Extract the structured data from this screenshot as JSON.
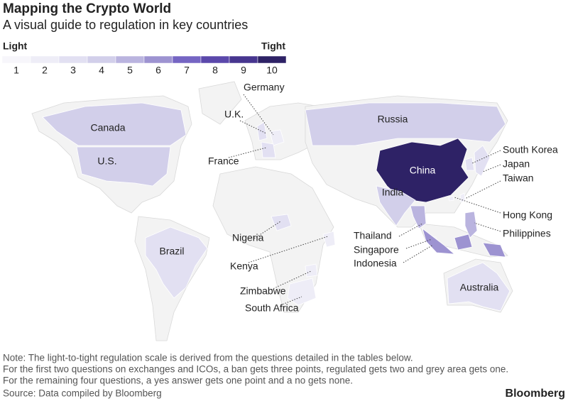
{
  "header": {
    "title": "Mapping the Crypto World",
    "subtitle": "A visual guide to regulation in key countries"
  },
  "legend": {
    "low_label": "Light",
    "high_label": "Tight",
    "scale": [
      1,
      2,
      3,
      4,
      5,
      6,
      7,
      8,
      9,
      10
    ],
    "colors": [
      "#f7f6fb",
      "#eeedf7",
      "#e2e0f2",
      "#d2cfea",
      "#bab4df",
      "#9d93d1",
      "#7565c3",
      "#5b48ab",
      "#47368f",
      "#2e2266"
    ]
  },
  "countries": [
    {
      "name": "Canada",
      "level": 4
    },
    {
      "name": "U.S.",
      "level": 4
    },
    {
      "name": "Russia",
      "level": 4
    },
    {
      "name": "China",
      "level": 10
    },
    {
      "name": "India",
      "level": 4
    },
    {
      "name": "Brazil",
      "level": 3
    },
    {
      "name": "Australia",
      "level": 3
    },
    {
      "name": "Germany",
      "level": 2
    },
    {
      "name": "U.K.",
      "level": 3
    },
    {
      "name": "France",
      "level": 3
    },
    {
      "name": "Nigeria",
      "level": 3
    },
    {
      "name": "Kenya",
      "level": 2
    },
    {
      "name": "Zimbabwe",
      "level": 2
    },
    {
      "name": "South Africa",
      "level": 2
    },
    {
      "name": "South Korea",
      "level": 3
    },
    {
      "name": "Japan",
      "level": 3
    },
    {
      "name": "Taiwan",
      "level": 2
    },
    {
      "name": "Hong Kong",
      "level": 2
    },
    {
      "name": "Philippines",
      "level": 5
    },
    {
      "name": "Thailand",
      "level": 5
    },
    {
      "name": "Singapore",
      "level": 3
    },
    {
      "name": "Indonesia",
      "level": 6
    }
  ],
  "notes": [
    "Note: The light-to-tight regulation scale is derived from the questions detailed in the tables below.",
    "For the first two questions on exchanges and ICOs, a ban gets three points, regulated gets two and grey area gets one.",
    "For the remaining four questions, a yes answer gets one point and a no gets none."
  ],
  "source": "Source: Data compiled by Bloomberg",
  "brand": "Bloomberg"
}
